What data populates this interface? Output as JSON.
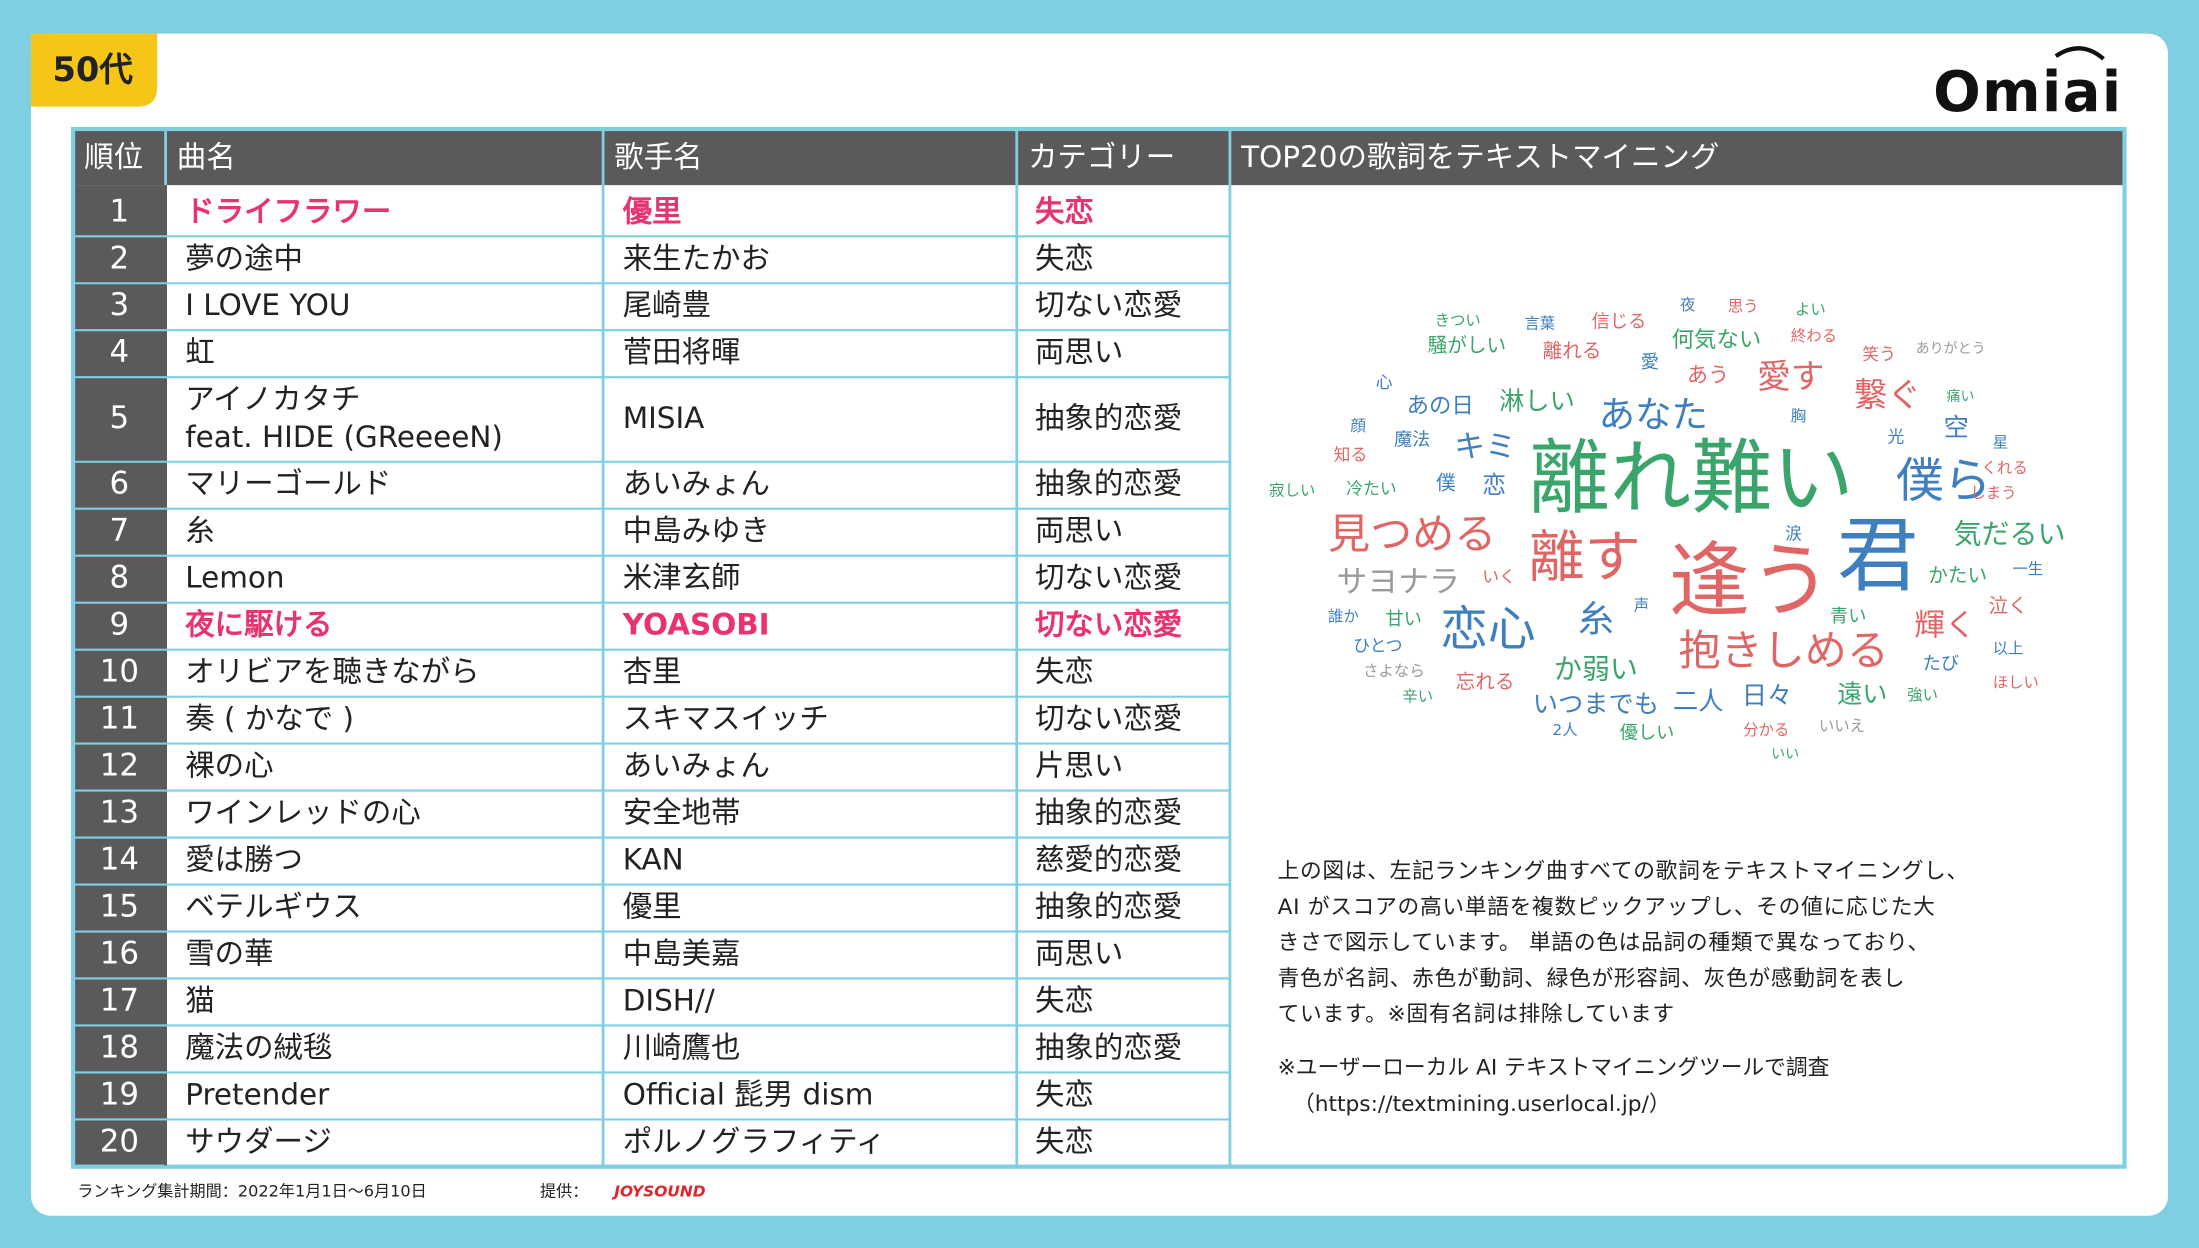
{
  "badge": "50代",
  "logo": "Omiai",
  "table": {
    "header": [
      "順位",
      "曲名",
      "歌手名",
      "カテゴリー",
      "TOP20の歌詞をテキストマイニング"
    ],
    "rows": [
      {
        "rank": 1,
        "song": "ドライフラワー",
        "artist": "優里",
        "category": "失恋",
        "highlight": true
      },
      {
        "rank": 2,
        "song": "夢の途中",
        "artist": "来生たかお",
        "category": "失恋"
      },
      {
        "rank": 3,
        "song": "I LOVE YOU",
        "artist": "尾崎豊",
        "category": "切ない恋愛"
      },
      {
        "rank": 4,
        "song": "虹",
        "artist": "菅田将暉",
        "category": "両思い"
      },
      {
        "rank": 5,
        "song": [
          "アイノカタチ",
          "feat. HIDE (GReeeeN)"
        ],
        "artist": "MISIA",
        "category": "抽象的恋愛"
      },
      {
        "rank": 6,
        "song": "マリーゴールド",
        "artist": "あいみょん",
        "category": "抽象的恋愛"
      },
      {
        "rank": 7,
        "song": "糸",
        "artist": "中島みゆき",
        "category": "両思い"
      },
      {
        "rank": 8,
        "song": "Lemon",
        "artist": "米津玄師",
        "category": "切ない恋愛"
      },
      {
        "rank": 9,
        "song": "夜に駆ける",
        "artist": "YOASOBI",
        "category": "切ない恋愛",
        "highlight": true
      },
      {
        "rank": 10,
        "song": "オリビアを聴きながら",
        "artist": "杏里",
        "category": "失恋"
      },
      {
        "rank": 11,
        "song": "奏 ( かなで )",
        "artist": "スキマスイッチ",
        "category": "切ない恋愛"
      },
      {
        "rank": 12,
        "song": "裸の心",
        "artist": "あいみょん",
        "category": "片思い"
      },
      {
        "rank": 13,
        "song": "ワインレッドの心",
        "artist": "安全地帯",
        "category": "抽象的恋愛"
      },
      {
        "rank": 14,
        "song": "愛は勝つ",
        "artist": "KAN",
        "category": "慈愛的恋愛"
      },
      {
        "rank": 15,
        "song": "ベテルギウス",
        "artist": "優里",
        "category": "抽象的恋愛"
      },
      {
        "rank": 16,
        "song": "雪の華",
        "artist": "中島美嘉",
        "category": "両思い"
      },
      {
        "rank": 17,
        "song": "猫",
        "artist": "DISH//",
        "category": "失恋"
      },
      {
        "rank": 18,
        "song": "魔法の絨毯",
        "artist": "川崎鷹也",
        "category": "抽象的恋愛"
      },
      {
        "rank": 19,
        "song": "Pretender",
        "artist": "Official 髭男 dism",
        "category": "失恋"
      },
      {
        "rank": 20,
        "song": "サウダージ",
        "artist": "ポルノグラフィティ",
        "category": "失恋"
      }
    ]
  },
  "word_cloud": [
    "きつい",
    "言葉",
    "信じる",
    "夜",
    "思う",
    "よい",
    "騒がしい",
    "離れる",
    "何気ない",
    "終わる",
    "笑う",
    "ありがとう",
    "愛",
    "あう",
    "愛す",
    "繋ぐ",
    "心",
    "痛い",
    "あの日",
    "淋しい",
    "あなた",
    "胸",
    "顔",
    "魔法",
    "キミ",
    "光",
    "空",
    "星",
    "知る",
    "離れ難い",
    "僕ら",
    "くれる",
    "寂しい",
    "冷たい",
    "僕",
    "恋",
    "しまう",
    "見つめる",
    "涙",
    "君",
    "気だるい",
    "離す",
    "逢う",
    "サヨナラ",
    "いく",
    "かたい",
    "一生",
    "誰か",
    "甘い",
    "恋心",
    "糸",
    "声",
    "青い",
    "輝く",
    "泣く",
    "ひとつ",
    "抱きしめる",
    "以上",
    "たび",
    "さよなら",
    "忘れる",
    "か弱い",
    "日々",
    "遠い",
    "ほしい",
    "辛い",
    "いつまでも",
    "二人",
    "強い",
    "2人",
    "優しい",
    "分かる",
    "いいえ",
    "いい"
  ],
  "description": [
    "上の図は、左記ランキング曲すべての歌詞をテキストマイニングし、",
    "AI がスコアの高い単語を複数ピックアップし、その値に応じた大",
    "きさで図示しています。 単語の色は品詞の種類で異なっており、",
    "青色が名詞、赤色が動詞、緑色が形容詞、灰色が感動詞を表し",
    "ています。※固有名詞は排除しています"
  ],
  "note": [
    "※ユーザーローカル AI テキストマイニングツールで調査",
    "（https://textmining.userlocal.jp/）"
  ],
  "footer": {
    "period": "ランキング集計期間：2022年1月1日～6月10日",
    "provider_label": "提供：",
    "provider": "JOYSOUND"
  }
}
